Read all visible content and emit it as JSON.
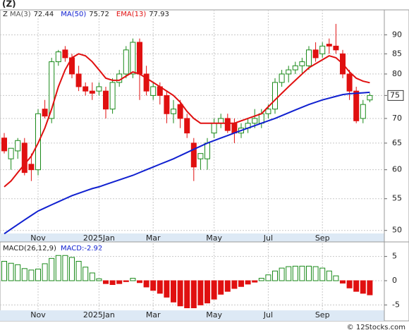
{
  "chart_data": {
    "type": "candlestick",
    "title": "(Z)",
    "symbol": "Z",
    "categories": [
      null,
      null,
      null,
      null,
      null,
      "Nov",
      null,
      null,
      null,
      null,
      null,
      null,
      null,
      null,
      "2025Jan",
      null,
      null,
      null,
      null,
      null,
      null,
      null,
      "Mar",
      null,
      null,
      null,
      null,
      null,
      null,
      null,
      null,
      "May",
      null,
      null,
      null,
      null,
      null,
      null,
      null,
      "Jul",
      null,
      null,
      null,
      null,
      null,
      null,
      null,
      "Sep",
      null,
      null,
      null,
      null,
      null,
      null,
      null
    ],
    "open": [
      66,
      62,
      63.5,
      65,
      61,
      60,
      72,
      70,
      83,
      86,
      84,
      80,
      77,
      76,
      76,
      76,
      72,
      78,
      80,
      80,
      88,
      80,
      75,
      77,
      75,
      71,
      73,
      70,
      65,
      62,
      62,
      67,
      69,
      70,
      69,
      67,
      68,
      69,
      69,
      71,
      72,
      78,
      80,
      81,
      82,
      82,
      86,
      85,
      87.5,
      87,
      85,
      80,
      76,
      70,
      74
    ],
    "high": [
      67,
      64,
      66,
      66,
      63,
      72,
      74,
      84,
      86,
      87,
      85,
      82,
      78,
      78,
      78,
      77,
      79,
      81,
      87,
      89,
      89,
      82,
      78,
      78,
      76,
      74,
      74,
      71,
      66,
      63,
      66,
      70,
      71,
      71,
      70,
      69,
      70,
      72,
      72,
      73,
      79,
      81,
      82,
      83,
      84,
      87,
      88,
      88,
      89,
      93,
      86,
      81,
      77,
      74,
      75.5
    ],
    "low": [
      63,
      60,
      62,
      59,
      58,
      59,
      70,
      69,
      82,
      83,
      79,
      76,
      75,
      74,
      75,
      70,
      71,
      77,
      79,
      79,
      74,
      75,
      74,
      73,
      69,
      69,
      68,
      66,
      58,
      60,
      60,
      66,
      68,
      67,
      65,
      66,
      67,
      68,
      68,
      70,
      71,
      77,
      78,
      80,
      80,
      81,
      83,
      84,
      85,
      85,
      79,
      74,
      69,
      69,
      73.5
    ],
    "close": [
      63.5,
      64,
      65.5,
      59.5,
      60,
      71,
      70.5,
      83,
      85.5,
      84,
      80,
      77,
      76,
      75.5,
      77,
      72,
      78,
      80,
      86,
      88,
      80,
      76,
      77,
      75,
      71,
      72,
      70,
      67,
      60.5,
      63,
      65,
      69,
      70,
      67.5,
      67,
      68,
      69,
      70,
      71,
      72,
      78,
      80,
      81,
      82,
      83,
      86,
      84,
      87,
      87,
      86,
      80,
      76,
      69.5,
      73,
      75
    ],
    "up_color": "#1a8a1a",
    "down_color": "#e01010",
    "ylim": [
      48.1,
      97
    ],
    "yticks": [
      50,
      55,
      60,
      65,
      70,
      75,
      80,
      85,
      90
    ],
    "log_scale": true,
    "grid": true,
    "last_price": 75,
    "indicators": [
      {
        "name": "MA(3)",
        "color": "#555555",
        "last": 72.44
      },
      {
        "name": "MA(50)",
        "color": "#1020d0",
        "last": 75.72,
        "values": [
          49.5,
          50.2,
          50.9,
          51.6,
          52.3,
          53,
          53.5,
          54,
          54.5,
          55,
          55.5,
          55.9,
          56.3,
          56.7,
          57,
          57.4,
          57.8,
          58.2,
          58.6,
          59,
          59.5,
          60,
          60.5,
          61,
          61.5,
          62,
          62.6,
          63.2,
          63.8,
          64.4,
          65,
          65.5,
          66,
          66.5,
          67,
          67.5,
          68,
          68.5,
          69,
          69.5,
          70,
          70.6,
          71.2,
          71.8,
          72.4,
          73,
          73.5,
          74,
          74.4,
          74.8,
          75.2,
          75.4,
          75.5,
          75.6,
          75.72
        ]
      },
      {
        "name": "EMA(13)",
        "color": "#e01010",
        "last": 77.93,
        "values": [
          57,
          58,
          59.5,
          61,
          62.5,
          65,
          68,
          72,
          77,
          81,
          84,
          85,
          84.5,
          83,
          81,
          79,
          78.5,
          78.5,
          79.5,
          80.5,
          80,
          79,
          78,
          77,
          76,
          75,
          73.5,
          71.5,
          70,
          69,
          69,
          69,
          69,
          69,
          69,
          69.5,
          70,
          70.5,
          71,
          72.5,
          74,
          75.5,
          77,
          78.5,
          80,
          81.5,
          82.5,
          83.5,
          84.5,
          84,
          82.5,
          80.5,
          79,
          78.3,
          77.93
        ]
      }
    ],
    "macd": {
      "title": "MACD(26,12,9)",
      "last": -2.92,
      "last_label": "MACD:-2.92",
      "values": [
        4.0,
        3.6,
        3.3,
        2.5,
        2.2,
        2.4,
        3.5,
        4.6,
        5.2,
        5.2,
        4.8,
        4.0,
        2.8,
        1.6,
        0.4,
        -0.6,
        -0.8,
        -0.6,
        -0.2,
        0.5,
        -0.4,
        -1.3,
        -2.0,
        -2.6,
        -3.4,
        -4.4,
        -5.2,
        -5.6,
        -5.6,
        -5.0,
        -4.6,
        -3.8,
        -2.8,
        -2.2,
        -1.6,
        -1.2,
        -0.7,
        -0.3,
        0.5,
        1.2,
        2.0,
        2.6,
        2.9,
        3.0,
        3.0,
        3.0,
        2.9,
        2.6,
        2.0,
        1.0,
        -0.5,
        -1.5,
        -2.2,
        -2.6,
        -2.92
      ],
      "ylim": [
        -8,
        8
      ],
      "yticks": [
        -5,
        0,
        5
      ]
    },
    "footer": "© 12Stocks.com"
  }
}
